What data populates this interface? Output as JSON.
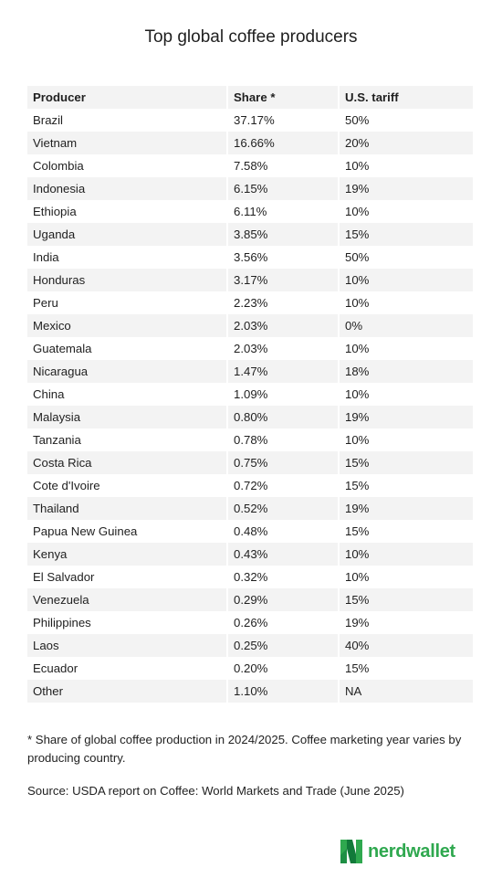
{
  "title": "Top global coffee producers",
  "chart_data": {
    "type": "table",
    "columns": [
      "Producer",
      "Share *",
      "U.S. tariff"
    ],
    "rows": [
      [
        "Brazil",
        "37.17%",
        "50%"
      ],
      [
        "Vietnam",
        "16.66%",
        "20%"
      ],
      [
        "Colombia",
        "7.58%",
        "10%"
      ],
      [
        "Indonesia",
        "6.15%",
        "19%"
      ],
      [
        "Ethiopia",
        "6.11%",
        "10%"
      ],
      [
        "Uganda",
        "3.85%",
        "15%"
      ],
      [
        "India",
        "3.56%",
        "50%"
      ],
      [
        "Honduras",
        "3.17%",
        "10%"
      ],
      [
        "Peru",
        "2.23%",
        "10%"
      ],
      [
        "Mexico",
        "2.03%",
        "0%"
      ],
      [
        "Guatemala",
        "2.03%",
        "10%"
      ],
      [
        "Nicaragua",
        "1.47%",
        "18%"
      ],
      [
        "China",
        "1.09%",
        "10%"
      ],
      [
        "Malaysia",
        "0.80%",
        "19%"
      ],
      [
        "Tanzania",
        "0.78%",
        "10%"
      ],
      [
        "Costa Rica",
        "0.75%",
        "15%"
      ],
      [
        "Cote d'Ivoire",
        "0.72%",
        "15%"
      ],
      [
        "Thailand",
        "0.52%",
        "19%"
      ],
      [
        "Papua New Guinea",
        "0.48%",
        "15%"
      ],
      [
        "Kenya",
        "0.43%",
        "10%"
      ],
      [
        "El Salvador",
        "0.32%",
        "10%"
      ],
      [
        "Venezuela",
        "0.29%",
        "15%"
      ],
      [
        "Philippines",
        "0.26%",
        "19%"
      ],
      [
        "Laos",
        "0.25%",
        "40%"
      ],
      [
        "Ecuador",
        "0.20%",
        "15%"
      ],
      [
        "Other",
        "1.10%",
        "NA"
      ]
    ]
  },
  "footnote": "* Share of global coffee production in 2024/2025. Coffee marketing year varies by producing country.",
  "source": "Source: USDA report on Coffee: World Markets and Trade (June 2025)",
  "logo": {
    "text": "nerdwallet",
    "icon": "nerdwallet-logo-icon",
    "color": "#2fa84f"
  },
  "colors": {
    "row_stripe": "#f3f3f3",
    "text": "#1f1f1f"
  }
}
